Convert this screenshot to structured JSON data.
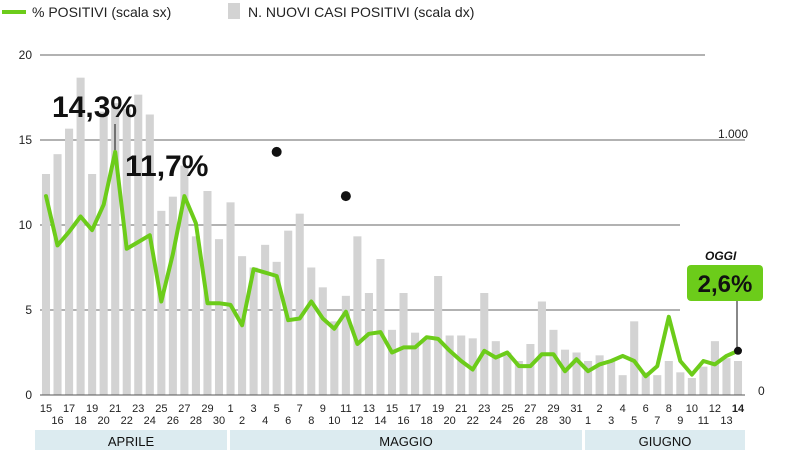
{
  "legend": {
    "line_label": "% POSITIVI (scala sx)",
    "bar_label": "N. NUOVI CASI POSITIVI (scala dx)",
    "line_color": "#6ccc1a",
    "bar_color": "#d3d3d3"
  },
  "axes": {
    "left_ticks": [
      "0",
      "5",
      "10",
      "15",
      "20"
    ],
    "right_ticks": [
      "0",
      "1.000"
    ]
  },
  "months": [
    "APRILE",
    "MAGGIO",
    "GIUGNO"
  ],
  "annotations": {
    "peak1": "14,3%",
    "peak2": "11,7%",
    "oggi": "OGGI",
    "today": "2,6%"
  },
  "chart_data": {
    "type": "bar",
    "x": [
      "15",
      "16",
      "17",
      "18",
      "19",
      "20",
      "21",
      "22",
      "23",
      "24",
      "25",
      "26",
      "27",
      "28",
      "29",
      "30",
      "1",
      "2",
      "3",
      "4",
      "5",
      "6",
      "7",
      "8",
      "9",
      "10",
      "11",
      "12",
      "13",
      "14",
      "15",
      "16",
      "17",
      "18",
      "19",
      "20",
      "21",
      "22",
      "23",
      "24",
      "25",
      "26",
      "27",
      "28",
      "29",
      "30",
      "31",
      "1",
      "2",
      "3",
      "4",
      "5",
      "6",
      "7",
      "8",
      "9",
      "10",
      "11",
      "12",
      "13",
      "14"
    ],
    "x_tick_labels_top": [
      "15",
      "17",
      "19",
      "21",
      "23",
      "25",
      "27",
      "29",
      "1",
      "3",
      "5",
      "7",
      "9",
      "11",
      "13",
      "15",
      "17",
      "19",
      "21",
      "23",
      "25",
      "27",
      "29",
      "31",
      "2",
      "4",
      "6",
      "8",
      "10",
      "12",
      "14"
    ],
    "x_tick_labels_bottom": [
      "16",
      "18",
      "20",
      "22",
      "24",
      "26",
      "28",
      "30",
      "2",
      "4",
      "6",
      "8",
      "10",
      "12",
      "14",
      "16",
      "18",
      "20",
      "22",
      "24",
      "26",
      "28",
      "30",
      "1",
      "3",
      "5",
      "7",
      "9",
      "11",
      "13"
    ],
    "series": [
      {
        "name": "% POSITIVI (scala sx)",
        "type": "line",
        "axis": "left",
        "values": [
          11.7,
          8.8,
          9.6,
          10.5,
          9.7,
          11.2,
          14.3,
          8.6,
          9.0,
          9.4,
          5.5,
          8.3,
          11.7,
          10.1,
          5.4,
          5.4,
          5.3,
          4.1,
          7.4,
          7.2,
          7.0,
          4.4,
          4.5,
          5.5,
          4.5,
          3.9,
          4.9,
          3.0,
          3.6,
          3.7,
          2.5,
          2.8,
          2.8,
          3.4,
          3.3,
          2.6,
          2.0,
          1.5,
          2.6,
          2.2,
          2.5,
          1.7,
          1.7,
          2.4,
          2.4,
          1.4,
          2.1,
          1.4,
          1.8,
          2.0,
          2.3,
          2.0,
          1.1,
          1.7,
          4.6,
          2.0,
          1.2,
          2.0,
          1.8,
          2.3,
          2.6
        ]
      },
      {
        "name": "N. NUOVI CASI POSITIVI (scala dx)",
        "type": "bar",
        "axis": "right",
        "values": [
          780,
          850,
          940,
          1120,
          780,
          1000,
          1030,
          1010,
          1060,
          990,
          650,
          700,
          810,
          560,
          720,
          550,
          680,
          490,
          450,
          530,
          470,
          580,
          640,
          450,
          380,
          260,
          350,
          560,
          360,
          480,
          230,
          360,
          220,
          200,
          420,
          210,
          210,
          200,
          360,
          190,
          150,
          120,
          180,
          330,
          230,
          160,
          150,
          120,
          140,
          120,
          70,
          260,
          80,
          70,
          120,
          80,
          60,
          100,
          190,
          130,
          120
        ]
      }
    ],
    "ylim_left": [
      0,
      20
    ],
    "ylim_right": [
      0,
      1200
    ],
    "grid": true,
    "legend_position": "top-left",
    "highlights": [
      {
        "label": "14,3%",
        "index": 20,
        "value": 14.3
      },
      {
        "label": "11,7%",
        "index": 26,
        "value": 11.7
      },
      {
        "label": "2,6%",
        "index": 60,
        "value": 2.6
      }
    ]
  }
}
